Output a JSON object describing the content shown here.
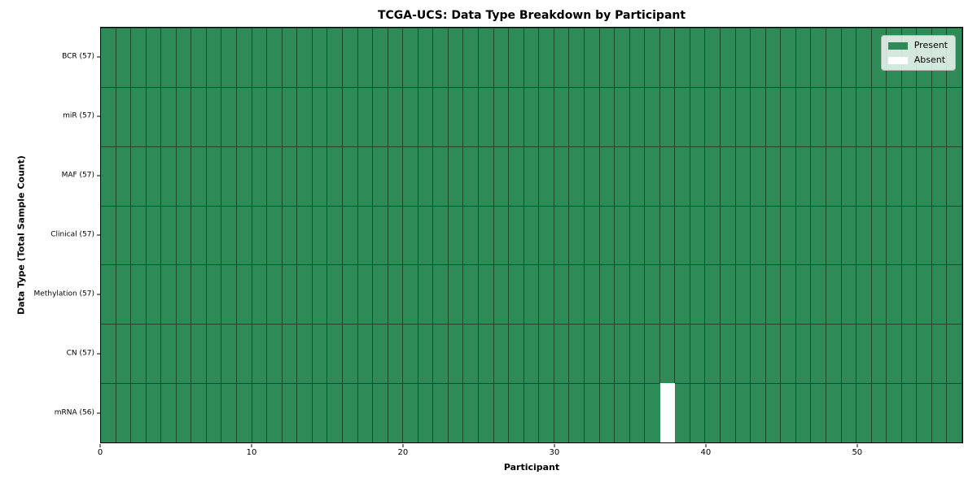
{
  "chart_data": {
    "type": "heatmap",
    "title": "TCGA-UCS: Data Type Breakdown by Participant",
    "xlabel": "Participant",
    "ylabel": "Data Type (Total Sample Count)",
    "n_participants": 57,
    "x_range": [
      0,
      57
    ],
    "x_ticks": [
      0,
      10,
      20,
      30,
      40,
      50
    ],
    "grid": "cell-edges-on",
    "legend_position": "upper right",
    "rows": [
      {
        "label": "BCR (57)",
        "data_type": "BCR",
        "total": 57,
        "absent_participants": []
      },
      {
        "label": "miR (57)",
        "data_type": "miR",
        "total": 57,
        "absent_participants": []
      },
      {
        "label": "MAF (57)",
        "data_type": "MAF",
        "total": 57,
        "absent_participants": []
      },
      {
        "label": "Clinical (57)",
        "data_type": "Clinical",
        "total": 57,
        "absent_participants": []
      },
      {
        "label": "Methylation (57)",
        "data_type": "Methylation",
        "total": 57,
        "absent_participants": []
      },
      {
        "label": "CN (57)",
        "data_type": "CN",
        "total": 57,
        "absent_participants": []
      },
      {
        "label": "mRNA (56)",
        "data_type": "mRNA",
        "total": 56,
        "absent_participants": [
          37
        ]
      }
    ],
    "legend": {
      "entries": [
        {
          "label": "Present",
          "color": "#2e8b57"
        },
        {
          "label": "Absent",
          "color": "#ffffff"
        }
      ]
    },
    "colors": {
      "present": "#2e8b57",
      "absent": "#ffffff",
      "spine": "#000000"
    }
  }
}
